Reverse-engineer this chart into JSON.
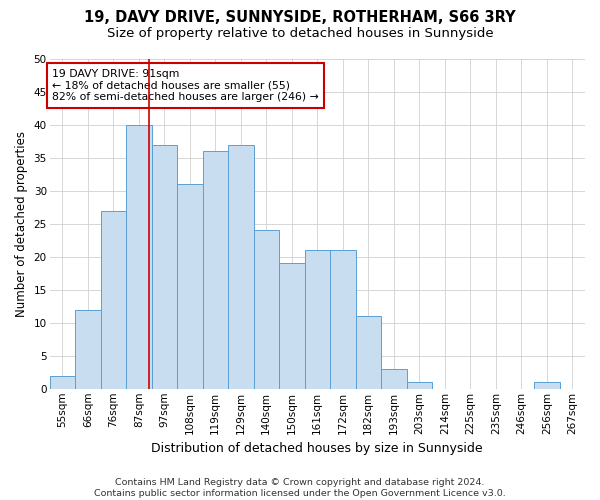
{
  "title": "19, DAVY DRIVE, SUNNYSIDE, ROTHERHAM, S66 3RY",
  "subtitle": "Size of property relative to detached houses in Sunnyside",
  "xlabel": "Distribution of detached houses by size in Sunnyside",
  "ylabel": "Number of detached properties",
  "bar_labels": [
    "55sqm",
    "66sqm",
    "76sqm",
    "87sqm",
    "97sqm",
    "108sqm",
    "119sqm",
    "129sqm",
    "140sqm",
    "150sqm",
    "161sqm",
    "172sqm",
    "182sqm",
    "193sqm",
    "203sqm",
    "214sqm",
    "225sqm",
    "235sqm",
    "246sqm",
    "256sqm",
    "267sqm"
  ],
  "bar_values": [
    2,
    12,
    27,
    40,
    37,
    31,
    36,
    37,
    24,
    19,
    21,
    21,
    11,
    3,
    1,
    0,
    0,
    0,
    0,
    1,
    0
  ],
  "bar_color": "#c9ddf0",
  "bar_edgecolor": "#5a9fd4",
  "ylim": [
    0,
    50
  ],
  "yticks": [
    0,
    5,
    10,
    15,
    20,
    25,
    30,
    35,
    40,
    45,
    50
  ],
  "red_line_color": "#cc0000",
  "red_line_x": 3.4,
  "annotation_line1": "19 DAVY DRIVE: 91sqm",
  "annotation_line2": "← 18% of detached houses are smaller (55)",
  "annotation_line3": "82% of semi-detached houses are larger (246) →",
  "annotation_box_edgecolor": "#cc0000",
  "footnote_line1": "Contains HM Land Registry data © Crown copyright and database right 2024.",
  "footnote_line2": "Contains public sector information licensed under the Open Government Licence v3.0.",
  "title_fontsize": 10.5,
  "subtitle_fontsize": 9.5,
  "xlabel_fontsize": 9,
  "ylabel_fontsize": 8.5,
  "tick_fontsize": 7.5,
  "annotation_fontsize": 7.8,
  "footnote_fontsize": 6.8,
  "background_color": "#ffffff",
  "grid_color": "#d0d0d0"
}
